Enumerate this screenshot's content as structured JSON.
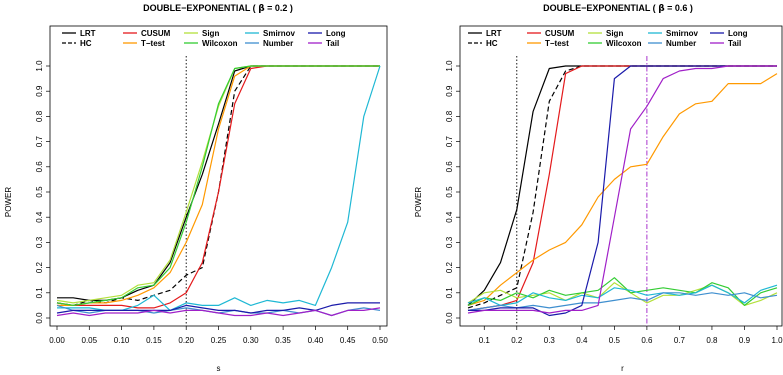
{
  "chart_data": [
    {
      "type": "line",
      "title_prefix": "DOUBLE−EXPONENTIAL ( ",
      "title_beta": "β",
      "title_suffix": " = 0.2 )",
      "xlabel": "s",
      "ylabel": "POWER",
      "xlim": [
        0,
        0.5
      ],
      "ylim": [
        0,
        1
      ],
      "x_ticks": [
        "0.00",
        "0.05",
        "0.10",
        "0.15",
        "0.20",
        "0.25",
        "0.30",
        "0.35",
        "0.40",
        "0.45",
        "0.50"
      ],
      "y_ticks": [
        "0.0",
        "0.1",
        "0.2",
        "0.3",
        "0.4",
        "0.5",
        "0.6",
        "0.7",
        "0.8",
        "0.9",
        "1.0"
      ],
      "vlines": [
        {
          "x": 0.2,
          "color": "#000000",
          "style": "dotted"
        }
      ],
      "legend_position": "top",
      "x": [
        0,
        0.025,
        0.05,
        0.075,
        0.1,
        0.125,
        0.15,
        0.175,
        0.2,
        0.225,
        0.25,
        0.275,
        0.3,
        0.325,
        0.35,
        0.375,
        0.4,
        0.425,
        0.45,
        0.475,
        0.5
      ],
      "series": [
        {
          "name": "LRT",
          "color": "#000000",
          "dash": "solid",
          "values": [
            0.08,
            0.08,
            0.07,
            0.07,
            0.08,
            0.11,
            0.13,
            0.22,
            0.4,
            0.57,
            0.77,
            0.98,
            1,
            1,
            1,
            1,
            1,
            1,
            1,
            1,
            1
          ]
        },
        {
          "name": "HC",
          "color": "#000000",
          "dash": "dashed",
          "values": [
            0.06,
            0.05,
            0.07,
            0.06,
            0.08,
            0.07,
            0.09,
            0.11,
            0.17,
            0.2,
            0.5,
            0.9,
            1,
            1,
            1,
            1,
            1,
            1,
            1,
            1,
            1
          ]
        },
        {
          "name": "CUSUM",
          "color": "#e41a1c",
          "dash": "solid",
          "values": [
            0.06,
            0.05,
            0.05,
            0.05,
            0.05,
            0.04,
            0.04,
            0.06,
            0.1,
            0.22,
            0.5,
            0.85,
            0.99,
            1,
            1,
            1,
            1,
            1,
            1,
            1,
            1
          ]
        },
        {
          "name": "T−test",
          "color": "#ff9900",
          "dash": "solid",
          "values": [
            0.05,
            0.05,
            0.06,
            0.06,
            0.07,
            0.09,
            0.12,
            0.18,
            0.3,
            0.45,
            0.75,
            0.96,
            1,
            1,
            1,
            1,
            1,
            1,
            1,
            1,
            1
          ]
        },
        {
          "name": "Sign",
          "color": "#b3e03c",
          "dash": "solid",
          "values": [
            0.07,
            0.06,
            0.07,
            0.08,
            0.09,
            0.13,
            0.14,
            0.23,
            0.42,
            0.62,
            0.84,
            0.99,
            1,
            1,
            1,
            1,
            1,
            1,
            1,
            1,
            1
          ]
        },
        {
          "name": "Wilcoxon",
          "color": "#33cc33",
          "dash": "solid",
          "values": [
            0.06,
            0.05,
            0.06,
            0.07,
            0.08,
            0.12,
            0.13,
            0.2,
            0.38,
            0.6,
            0.85,
            0.99,
            1,
            1,
            1,
            1,
            1,
            1,
            1,
            1,
            1
          ]
        },
        {
          "name": "Smirnov",
          "color": "#1fb8d4",
          "dash": "solid",
          "values": [
            0.04,
            0.04,
            0.04,
            0.03,
            0.03,
            0.05,
            0.09,
            0.03,
            0.06,
            0.05,
            0.05,
            0.08,
            0.05,
            0.07,
            0.06,
            0.07,
            0.05,
            0.2,
            0.38,
            0.8,
            1
          ]
        },
        {
          "name": "Number",
          "color": "#3f8fcf",
          "dash": "solid",
          "values": [
            0.05,
            0.03,
            0.02,
            0.03,
            0.03,
            0.03,
            0.02,
            0.03,
            0.04,
            0.03,
            0.02,
            0.03,
            0.02,
            0.02,
            0.03,
            0.02,
            0.03,
            0.01,
            0.03,
            0.04,
            0.03
          ]
        },
        {
          "name": "Long",
          "color": "#1a1aaa",
          "dash": "solid",
          "values": [
            0.02,
            0.03,
            0.03,
            0.03,
            0.03,
            0.03,
            0.03,
            0.03,
            0.05,
            0.04,
            0.03,
            0.03,
            0.02,
            0.03,
            0.03,
            0.04,
            0.03,
            0.05,
            0.06,
            0.06,
            0.06
          ]
        },
        {
          "name": "Tail",
          "color": "#a020c8",
          "dash": "solid",
          "values": [
            0.01,
            0.02,
            0.01,
            0.02,
            0.02,
            0.02,
            0.03,
            0.02,
            0.03,
            0.03,
            0.02,
            0.01,
            0.01,
            0.02,
            0.01,
            0.02,
            0.03,
            0.01,
            0.03,
            0.03,
            0.04
          ]
        }
      ]
    },
    {
      "type": "line",
      "title_prefix": "DOUBLE−EXPONENTIAL ( ",
      "title_beta": "β",
      "title_suffix": " = 0.6 )",
      "xlabel": "r",
      "ylabel": "POWER",
      "xlim": [
        0.05,
        1.0
      ],
      "ylim": [
        0,
        1
      ],
      "x_ticks": [
        "0.1",
        "0.2",
        "0.3",
        "0.4",
        "0.5",
        "0.6",
        "0.7",
        "0.8",
        "0.9",
        "1.0"
      ],
      "y_ticks": [
        "0.0",
        "0.1",
        "0.2",
        "0.3",
        "0.4",
        "0.5",
        "0.6",
        "0.7",
        "0.8",
        "0.9",
        "1.0"
      ],
      "vlines": [
        {
          "x": 0.2,
          "color": "#000000",
          "style": "dotted"
        },
        {
          "x": 0.6,
          "color": "#a020c8",
          "style": "dashdot"
        }
      ],
      "legend_position": "top",
      "x": [
        0.05,
        0.1,
        0.15,
        0.2,
        0.25,
        0.3,
        0.35,
        0.4,
        0.45,
        0.5,
        0.55,
        0.6,
        0.65,
        0.7,
        0.75,
        0.8,
        0.85,
        0.9,
        0.95,
        1.0
      ],
      "series": [
        {
          "name": "LRT",
          "color": "#000000",
          "dash": "solid",
          "values": [
            0.05,
            0.11,
            0.22,
            0.43,
            0.82,
            0.99,
            1,
            1,
            1,
            1,
            1,
            1,
            1,
            1,
            1,
            1,
            1,
            1,
            1,
            1
          ]
        },
        {
          "name": "HC",
          "color": "#000000",
          "dash": "dashed",
          "values": [
            0.04,
            0.06,
            0.09,
            0.12,
            0.42,
            0.86,
            0.98,
            1,
            1,
            1,
            1,
            1,
            1,
            1,
            1,
            1,
            1,
            1,
            1,
            1
          ]
        },
        {
          "name": "CUSUM",
          "color": "#e41a1c",
          "dash": "solid",
          "values": [
            0.03,
            0.04,
            0.05,
            0.07,
            0.22,
            0.57,
            0.97,
            1,
            1,
            1,
            1,
            1,
            1,
            1,
            1,
            1,
            1,
            1,
            1,
            1
          ]
        },
        {
          "name": "T−test",
          "color": "#ff9900",
          "dash": "solid",
          "values": [
            0.05,
            0.07,
            0.13,
            0.18,
            0.23,
            0.27,
            0.3,
            0.37,
            0.48,
            0.55,
            0.6,
            0.61,
            0.72,
            0.81,
            0.85,
            0.86,
            0.93,
            0.93,
            0.93,
            0.97
          ]
        },
        {
          "name": "Sign",
          "color": "#b3e03c",
          "dash": "solid",
          "values": [
            0.06,
            0.1,
            0.11,
            0.08,
            0.09,
            0.1,
            0.07,
            0.1,
            0.08,
            0.14,
            0.1,
            0.06,
            0.09,
            0.09,
            0.11,
            0.13,
            0.1,
            0.05,
            0.07,
            0.1
          ]
        },
        {
          "name": "Wilcoxon",
          "color": "#33cc33",
          "dash": "solid",
          "values": [
            0.05,
            0.08,
            0.07,
            0.1,
            0.08,
            0.11,
            0.09,
            0.1,
            0.11,
            0.16,
            0.1,
            0.11,
            0.12,
            0.11,
            0.1,
            0.14,
            0.12,
            0.05,
            0.1,
            0.12
          ]
        },
        {
          "name": "Smirnov",
          "color": "#1fb8d4",
          "dash": "solid",
          "values": [
            0.06,
            0.08,
            0.05,
            0.06,
            0.1,
            0.08,
            0.07,
            0.09,
            0.08,
            0.12,
            0.11,
            0.09,
            0.1,
            0.09,
            0.1,
            0.13,
            0.1,
            0.06,
            0.11,
            0.13
          ]
        },
        {
          "name": "Number",
          "color": "#3f8fcf",
          "dash": "solid",
          "values": [
            0.03,
            0.04,
            0.05,
            0.04,
            0.05,
            0.04,
            0.05,
            0.06,
            0.06,
            0.07,
            0.08,
            0.07,
            0.1,
            0.1,
            0.09,
            0.1,
            0.09,
            0.1,
            0.08,
            0.09
          ]
        },
        {
          "name": "Long",
          "color": "#1a1aaa",
          "dash": "solid",
          "values": [
            0.03,
            0.03,
            0.04,
            0.04,
            0.04,
            0.01,
            0.02,
            0.05,
            0.3,
            0.95,
            1,
            1,
            1,
            1,
            1,
            1,
            1,
            1,
            1,
            1
          ]
        },
        {
          "name": "Tail",
          "color": "#a020c8",
          "dash": "solid",
          "values": [
            0.02,
            0.03,
            0.03,
            0.03,
            0.03,
            0.02,
            0.03,
            0.03,
            0.05,
            0.4,
            0.75,
            0.84,
            0.95,
            0.98,
            0.99,
            0.99,
            1,
            1,
            1,
            1
          ]
        }
      ]
    }
  ]
}
